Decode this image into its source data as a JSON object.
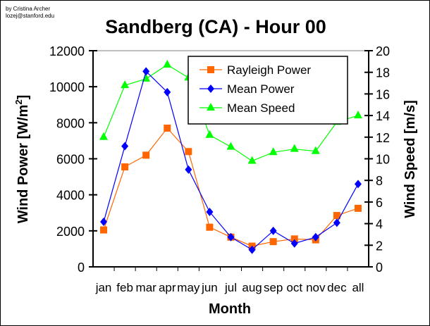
{
  "credit": [
    "by Cristina Archer",
    "lozej@stanford.edu"
  ],
  "chart_data": {
    "type": "line",
    "title": "Sandberg (CA) - Hour 00",
    "xlabel": "Month",
    "ylabel": "Wind Power [W/m²]",
    "ylabel_parts": [
      "Wind Power [W/m",
      "2",
      "]"
    ],
    "y2label": "Wind Speed [m/s]",
    "categories": [
      "jan",
      "feb",
      "mar",
      "apr",
      "may",
      "jun",
      "jul",
      "aug",
      "sep",
      "oct",
      "nov",
      "dec",
      "all"
    ],
    "ylim": [
      0,
      12000
    ],
    "y2lim": [
      0,
      20
    ],
    "yticks": [
      "0",
      "2000",
      "4000",
      "6000",
      "8000",
      "10000",
      "12000"
    ],
    "y2ticks": [
      "0",
      "2",
      "4",
      "6",
      "8",
      "10",
      "12",
      "14",
      "16",
      "18",
      "20"
    ],
    "legend_position": "top-center",
    "series": [
      {
        "name": "Rayleigh Power",
        "axis": "left",
        "color": "#ff6600",
        "marker": "square",
        "values": [
          2050,
          5550,
          6200,
          7700,
          6400,
          2200,
          1650,
          1150,
          1400,
          1550,
          1500,
          2850,
          3250
        ]
      },
      {
        "name": "Mean Power",
        "axis": "left",
        "color": "#0000ff",
        "marker": "diamond",
        "values": [
          2500,
          6700,
          10850,
          9700,
          5400,
          3050,
          1650,
          950,
          2000,
          1300,
          1650,
          2450,
          4600
        ]
      },
      {
        "name": "Mean Speed",
        "axis": "right",
        "color": "#00ff00",
        "marker": "triangle",
        "values": [
          12.0,
          16.8,
          17.4,
          18.7,
          17.5,
          12.2,
          11.1,
          9.8,
          10.6,
          10.9,
          10.7,
          13.4,
          14.0
        ]
      }
    ]
  }
}
